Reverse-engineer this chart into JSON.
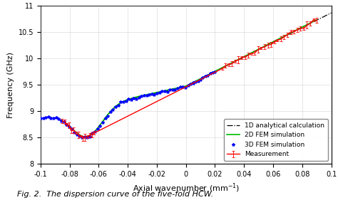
{
  "title": "",
  "xlabel": "Axial wavenumber (mm$^{-1}$)",
  "ylabel": "Frequency (GHz)",
  "xlim": [
    -0.1,
    0.1
  ],
  "ylim": [
    8.0,
    11.0
  ],
  "xticks": [
    -0.1,
    -0.08,
    -0.06,
    -0.04,
    -0.02,
    0,
    0.02,
    0.04,
    0.06,
    0.08,
    0.1
  ],
  "yticks": [
    8.0,
    8.5,
    9.0,
    9.5,
    10.0,
    10.5,
    11.0
  ],
  "caption": "Fig. 2.  The dispersion curve of the five-fold HCW.",
  "legend_labels": [
    "1D analytical calculation",
    "2D FEM simulation",
    "3D FEM simulation",
    "Measurement"
  ],
  "legend_colors": [
    "black",
    "#00cc00",
    "blue",
    "red"
  ],
  "legend_styles": [
    "dashdot",
    "solid",
    "none",
    "solid"
  ],
  "legend_markers": [
    "none",
    "none",
    "D",
    "none"
  ],
  "background_color": "#ffffff",
  "grid_color": "#aaaaaa"
}
